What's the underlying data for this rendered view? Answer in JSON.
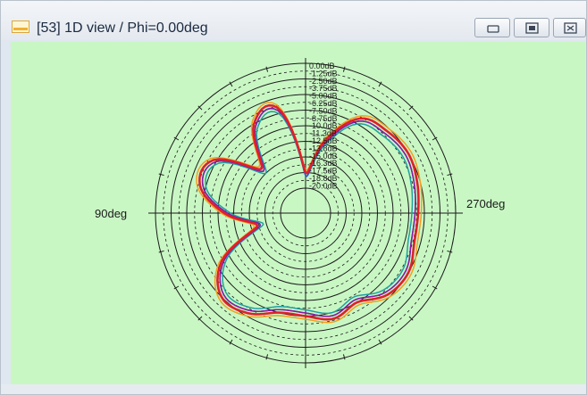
{
  "window": {
    "title": "[53] 1D view / Phi=0.00deg"
  },
  "plot": {
    "angle_labels": {
      "left": "90deg",
      "right": "270deg",
      "top": "0.00dB"
    },
    "scale_labels": [
      "0.00dB",
      "-1.25dB",
      "-2.50dB",
      "-3.75dB",
      "-5.00dB",
      "-6.25dB",
      "-7.50dB",
      "-8.75dB",
      "-10.0dB",
      "-11.3dB",
      "-12.5dB",
      "-13.8dB",
      "-15.0dB",
      "-16.3dB",
      "-17.5dB",
      "-18.8dB",
      "-20.0dB"
    ],
    "series_colors": [
      "#e0202a",
      "#8a1aa0",
      "#f0a020",
      "#3050d0",
      "#20a0a0"
    ]
  },
  "chart_data": {
    "type": "polar-line",
    "angle_unit": "deg",
    "radial_unit": "dB",
    "radial_range": [
      -20,
      0
    ],
    "angles": [
      0,
      15,
      30,
      45,
      60,
      75,
      90,
      105,
      120,
      135,
      150,
      165,
      180,
      195,
      210,
      225,
      240,
      255,
      270,
      285,
      300,
      315,
      330,
      345
    ],
    "series": [
      {
        "values": [
          -17.5,
          -6.5,
          -7.5,
          -14.0,
          -7.0,
          -6.5,
          -11.0,
          -16.0,
          -8.5,
          -5.0,
          -5.5,
          -7.5,
          -7.5,
          -6.5,
          -7.5,
          -5.5,
          -5.0,
          -6.0,
          -6.0,
          -5.5,
          -5.0,
          -5.5,
          -6.5,
          -12.0
        ]
      },
      {
        "values": [
          -17.5,
          -7.0,
          -8.0,
          -14.5,
          -7.5,
          -7.0,
          -11.5,
          -16.5,
          -9.0,
          -5.5,
          -6.0,
          -8.0,
          -8.0,
          -7.0,
          -8.0,
          -6.0,
          -5.5,
          -6.5,
          -6.5,
          -6.0,
          -5.5,
          -6.0,
          -7.0,
          -12.5
        ]
      },
      {
        "values": [
          -17.0,
          -6.0,
          -7.0,
          -13.5,
          -6.5,
          -6.0,
          -10.5,
          -15.5,
          -8.0,
          -4.5,
          -5.0,
          -7.0,
          -7.0,
          -6.0,
          -7.0,
          -5.0,
          -4.5,
          -5.5,
          -5.5,
          -5.0,
          -4.5,
          -5.0,
          -6.0,
          -11.5
        ]
      },
      {
        "values": [
          -18.0,
          -7.0,
          -8.0,
          -14.5,
          -7.5,
          -7.0,
          -11.5,
          -16.5,
          -9.0,
          -5.5,
          -6.0,
          -8.0,
          -8.0,
          -7.0,
          -8.0,
          -6.0,
          -5.5,
          -6.5,
          -6.5,
          -6.0,
          -5.5,
          -6.0,
          -7.0,
          -12.5
        ]
      },
      {
        "values": [
          -18.0,
          -7.5,
          -8.5,
          -15.0,
          -8.0,
          -7.5,
          -12.0,
          -17.0,
          -9.5,
          -6.0,
          -6.5,
          -8.5,
          -8.5,
          -7.5,
          -8.5,
          -6.5,
          -6.0,
          -7.0,
          -7.0,
          -6.5,
          -6.0,
          -6.5,
          -7.5,
          -13.0
        ]
      }
    ]
  }
}
